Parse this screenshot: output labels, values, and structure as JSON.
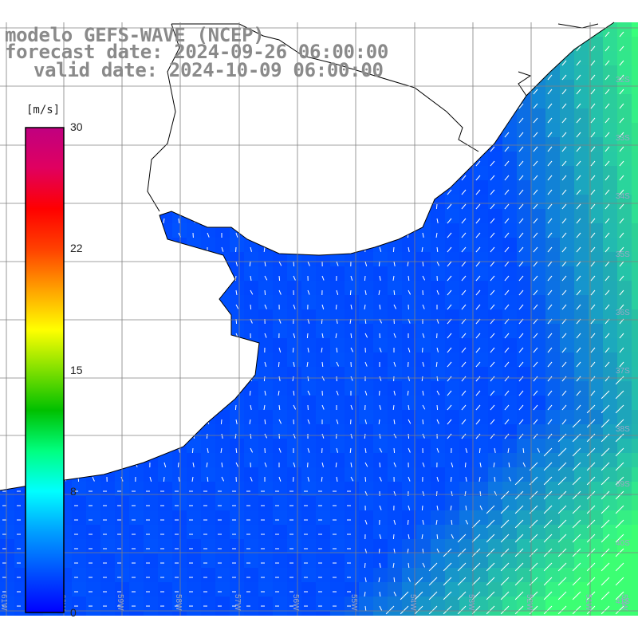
{
  "title": {
    "line1": "modelo GEFS-WAVE (NCEP)",
    "line2": "forecast date: 2024-09-26 06:00:00",
    "line3": "valid date: 2024-10-09 06:00:00"
  },
  "colorbar": {
    "unit": "[m/s]",
    "ticks": [
      "30",
      "22",
      "15",
      "8",
      "0"
    ],
    "colors": [
      "#0000ff",
      "#0050ff",
      "#00a0ff",
      "#00ffff",
      "#00ff80",
      "#00c000",
      "#80e000",
      "#ffff00",
      "#ffa000",
      "#ff4000",
      "#ff0000",
      "#e00060",
      "#c00080"
    ]
  },
  "latitude_labels": [
    "32S",
    "33S",
    "34S",
    "35S",
    "36S",
    "37S",
    "38S",
    "39S",
    "40S",
    "41S"
  ],
  "longitude_labels": [
    "61W",
    "60W",
    "59W",
    "58W",
    "57W",
    "56W",
    "55W",
    "54W",
    "53W",
    "52W",
    "51W",
    "50W"
  ],
  "colors": {
    "land": "#ffffff",
    "coast": "#000000",
    "grid": "#808080",
    "arrow": "#ffffff",
    "title": "#8a8a8a"
  }
}
